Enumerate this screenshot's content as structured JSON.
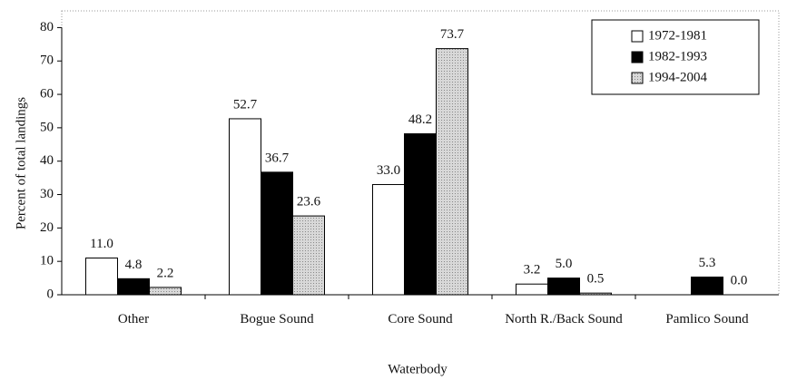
{
  "chart_data": {
    "type": "bar",
    "x_label": "Waterbody",
    "y_label": "Percent of total landings",
    "categories": [
      "Other",
      "Bogue Sound",
      "Core Sound",
      "North R./Back Sound",
      "Pamlico Sound"
    ],
    "series": [
      {
        "name": "1972-1981",
        "color": "#ffffff",
        "values": [
          11.0,
          52.7,
          33.0,
          3.2,
          null
        ],
        "value_labels": [
          "11.0",
          "52.7",
          "33.0",
          "3.2",
          null
        ]
      },
      {
        "name": "1982-1993",
        "color": "#000000",
        "values": [
          4.8,
          36.7,
          48.2,
          5.0,
          5.3
        ],
        "value_labels": [
          "4.8",
          "36.7",
          "48.2",
          "5.0",
          "5.3"
        ]
      },
      {
        "name": "1994-2004",
        "color": "#d0d0d0",
        "values": [
          2.2,
          23.6,
          73.7,
          0.5,
          0.0
        ],
        "value_labels": [
          "2.2",
          "23.6",
          "73.7",
          "0.5",
          "0.0"
        ]
      }
    ],
    "ylim": [
      0,
      85
    ],
    "yticks": [
      0,
      10,
      20,
      30,
      40,
      50,
      60,
      70,
      80
    ],
    "legend": "upper right"
  }
}
